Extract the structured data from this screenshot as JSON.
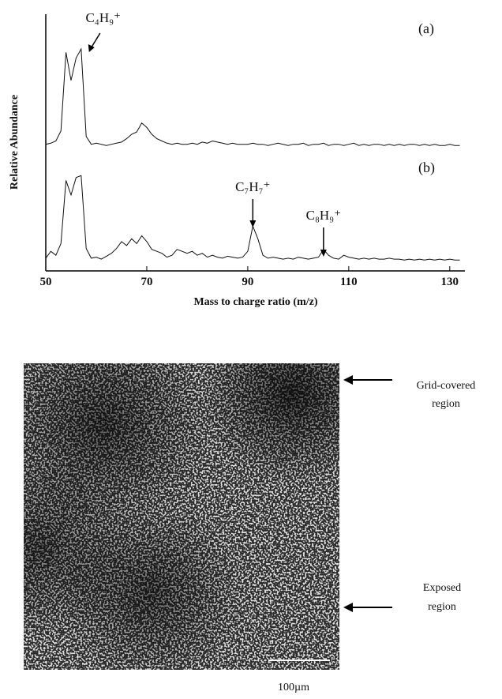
{
  "chart_data": [
    {
      "type": "line",
      "label": "(a)",
      "ylabel": "Relative Abundance",
      "xlim": [
        50,
        133
      ],
      "ylim": [
        0,
        100
      ],
      "x": [
        50,
        51,
        52,
        53,
        54,
        55,
        56,
        57,
        58,
        59,
        60,
        61,
        62,
        63,
        64,
        65,
        66,
        67,
        68,
        69,
        70,
        71,
        72,
        73,
        74,
        75,
        76,
        77,
        78,
        79,
        80,
        81,
        82,
        83,
        84,
        85,
        86,
        87,
        88,
        89,
        90,
        91,
        92,
        93,
        94,
        95,
        96,
        97,
        98,
        99,
        100,
        101,
        102,
        103,
        104,
        105,
        106,
        107,
        108,
        109,
        110,
        111,
        112,
        113,
        114,
        115,
        116,
        117,
        118,
        119,
        120,
        121,
        122,
        123,
        124,
        125,
        126,
        127,
        128,
        129,
        130,
        131,
        132
      ],
      "series": [
        {
          "color": "#111111",
          "values": [
            3,
            4,
            6,
            15,
            85,
            60,
            80,
            88,
            10,
            3,
            4,
            3,
            2,
            3,
            4,
            5,
            8,
            12,
            14,
            22,
            18,
            12,
            8,
            6,
            4,
            3,
            4,
            3,
            3,
            4,
            3,
            5,
            4,
            6,
            5,
            4,
            3,
            4,
            3,
            3,
            3,
            4,
            3,
            3,
            2,
            3,
            4,
            3,
            2,
            3,
            3,
            4,
            2,
            3,
            3,
            4,
            2,
            3,
            3,
            2,
            3,
            4,
            2,
            3,
            2,
            3,
            3,
            2,
            3,
            2,
            3,
            2,
            3,
            3,
            2,
            3,
            2,
            3,
            2,
            2,
            3,
            2,
            2
          ]
        }
      ],
      "annotations": [
        {
          "text": "C₄H₉⁺",
          "x": 57
        }
      ]
    },
    {
      "type": "line",
      "label": "(b)",
      "xlabel": "Mass to charge ratio (m/z)",
      "xlim": [
        50,
        133
      ],
      "ylim": [
        0,
        100
      ],
      "xticks": [
        50,
        70,
        90,
        110,
        130
      ],
      "x": [
        50,
        51,
        52,
        53,
        54,
        55,
        56,
        57,
        58,
        59,
        60,
        61,
        62,
        63,
        64,
        65,
        66,
        67,
        68,
        69,
        70,
        71,
        72,
        73,
        74,
        75,
        76,
        77,
        78,
        79,
        80,
        81,
        82,
        83,
        84,
        85,
        86,
        87,
        88,
        89,
        90,
        91,
        92,
        93,
        94,
        95,
        96,
        97,
        98,
        99,
        100,
        101,
        102,
        103,
        104,
        105,
        106,
        107,
        108,
        109,
        110,
        111,
        112,
        113,
        114,
        115,
        116,
        117,
        118,
        119,
        120,
        121,
        122,
        123,
        124,
        125,
        126,
        127,
        128,
        129,
        130,
        131,
        132
      ],
      "series": [
        {
          "color": "#111111",
          "values": [
            5,
            12,
            8,
            20,
            85,
            70,
            88,
            90,
            15,
            5,
            6,
            4,
            7,
            10,
            15,
            22,
            18,
            25,
            20,
            28,
            22,
            14,
            12,
            10,
            6,
            8,
            14,
            12,
            10,
            12,
            8,
            10,
            6,
            8,
            6,
            5,
            7,
            6,
            5,
            6,
            12,
            38,
            25,
            8,
            5,
            6,
            5,
            4,
            5,
            4,
            6,
            5,
            4,
            5,
            6,
            14,
            8,
            5,
            4,
            8,
            6,
            5,
            4,
            5,
            4,
            5,
            4,
            4,
            5,
            4,
            4,
            3,
            4,
            3,
            4,
            3,
            4,
            3,
            4,
            3,
            4,
            3,
            3
          ]
        }
      ],
      "annotations": [
        {
          "text": "C₇H₇⁺",
          "x": 91
        },
        {
          "text": "C₈H₉⁺",
          "x": 105
        }
      ]
    }
  ],
  "image": {
    "labels": [
      {
        "line1": "Grid-covered",
        "line2": "region"
      },
      {
        "line1": "Exposed",
        "line2": "region"
      }
    ],
    "scale_bar": "100µm"
  }
}
